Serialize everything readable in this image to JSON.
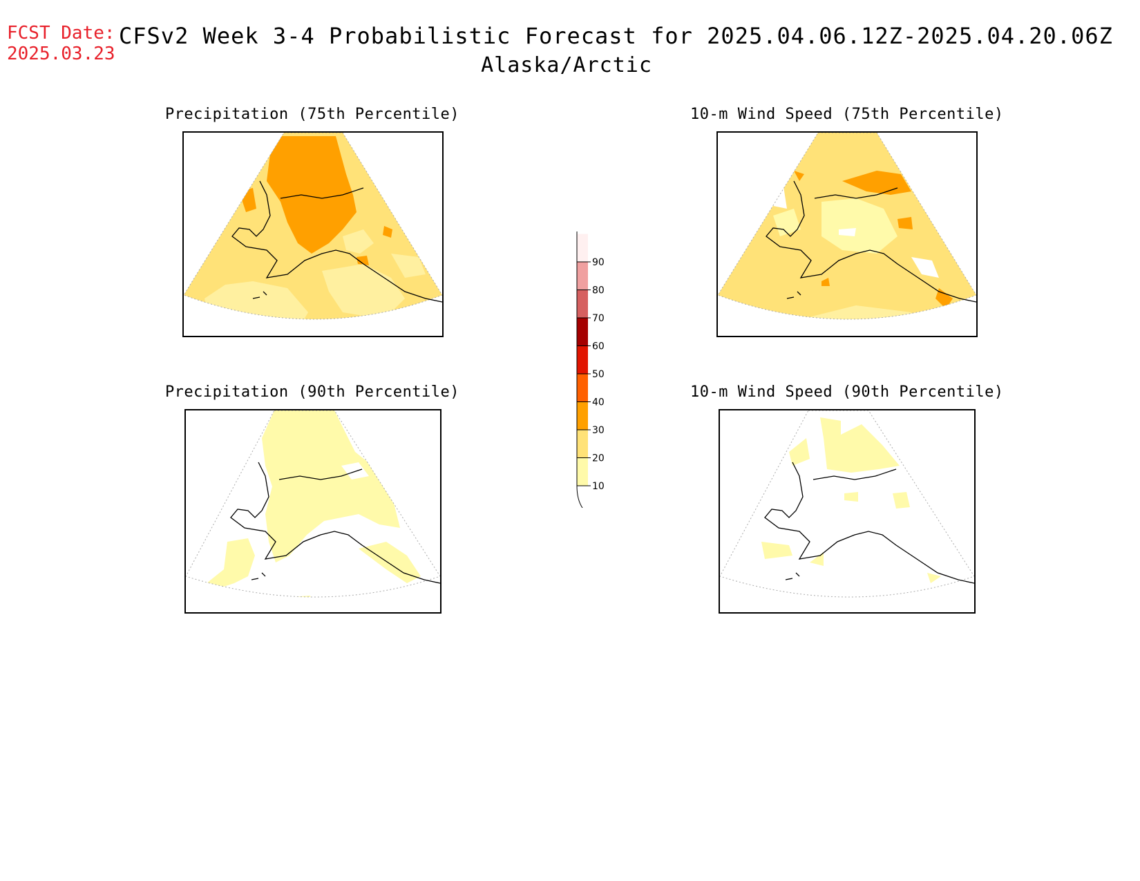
{
  "header": {
    "fcst_label": "FCST Date:",
    "fcst_date": "2025.03.23",
    "title": "CFSv2 Week 3-4 Probabilistic Forecast for 2025.04.06.12Z-2025.04.20.06Z",
    "region": "Alaska/Arctic"
  },
  "panels": [
    {
      "title": "Precipitation (75th Percentile)"
    },
    {
      "title": "10-m Wind Speed (75th Percentile)"
    },
    {
      "title": "Precipitation (90th Percentile)"
    },
    {
      "title": "10-m Wind Speed (90th Percentile)"
    }
  ],
  "colorbar": {
    "levels": [
      "10",
      "20",
      "30",
      "40",
      "50",
      "60",
      "70",
      "80",
      "90"
    ],
    "colors": [
      "#fffaaa",
      "#ffe278",
      "#ffa000",
      "#ff6000",
      "#e11400",
      "#a50000",
      "#d66060",
      "#f0a0a0",
      "#fff0f0"
    ]
  }
}
